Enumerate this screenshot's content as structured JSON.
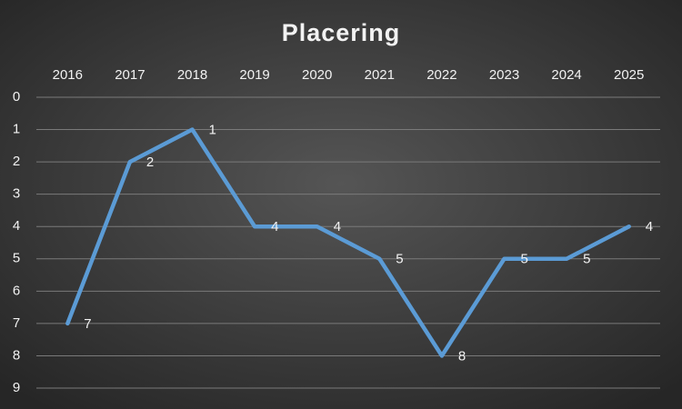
{
  "chart_data": {
    "type": "line",
    "title": "Placering",
    "categories": [
      "2016",
      "2017",
      "2018",
      "2019",
      "2020",
      "2021",
      "2022",
      "2023",
      "2024",
      "2025"
    ],
    "values": [
      7,
      2,
      1,
      4,
      4,
      5,
      8,
      5,
      5,
      4
    ],
    "color": "#5b9bd5",
    "ylim": [
      0,
      9
    ],
    "yticks": [
      0,
      1,
      2,
      3,
      4,
      5,
      6,
      7,
      8,
      9
    ],
    "y_inverted": true,
    "grid": true,
    "data_labels": true,
    "category_axis_position": "top"
  }
}
